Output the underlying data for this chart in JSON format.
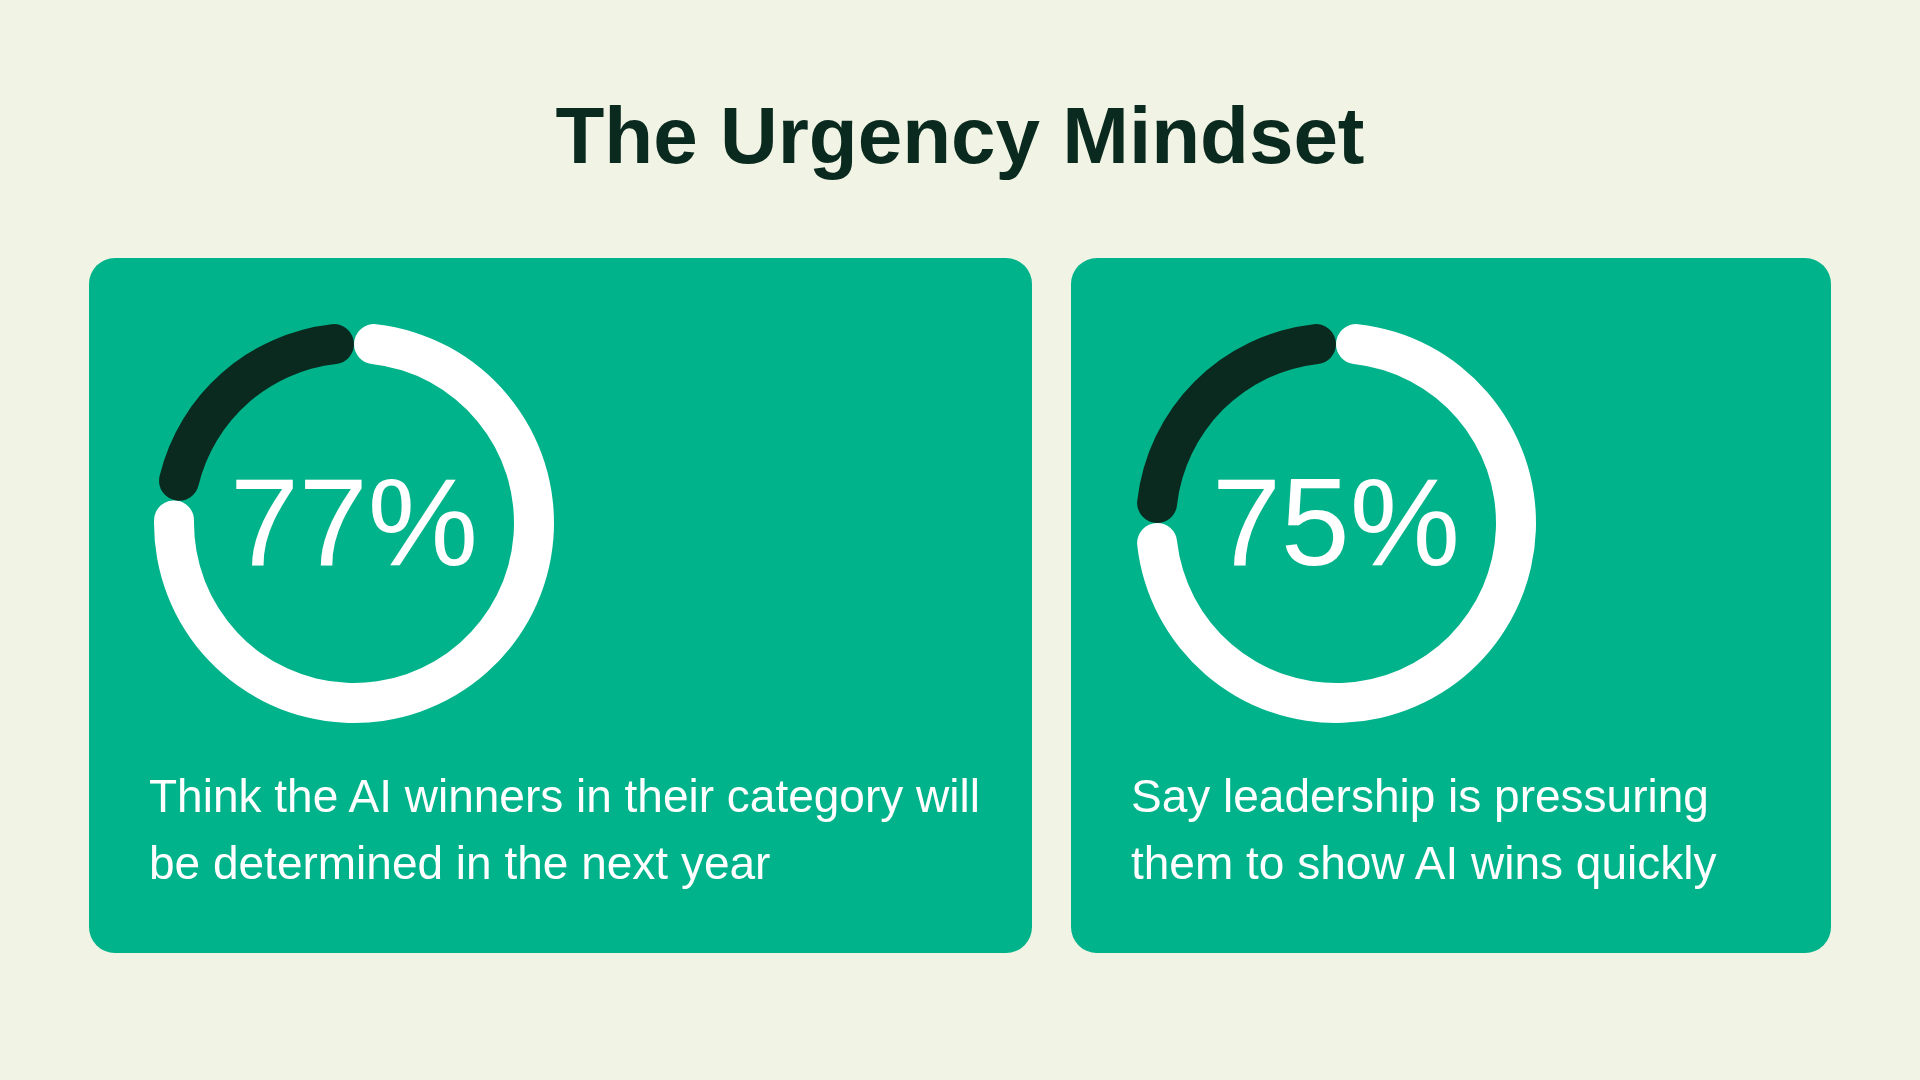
{
  "chart_data": [
    {
      "type": "donut",
      "title": "The Urgency Mindset",
      "categories": [
        null,
        null
      ],
      "values": [
        77,
        23
      ],
      "colors": [
        "#ffffff",
        "#0b2a1f"
      ],
      "value_labels": [
        "77%",
        null
      ],
      "annotations": [
        "Think the AI winners in their category will be determined in the next year"
      ],
      "legend": false
    },
    {
      "type": "donut",
      "categories": [
        null,
        null
      ],
      "values": [
        75,
        25
      ],
      "colors": [
        "#ffffff",
        "#0b2a1f"
      ],
      "value_labels": [
        "75%",
        null
      ],
      "annotations": [
        "Say leadership is pressuring them to show AI wins quickly"
      ],
      "legend": false
    }
  ]
}
